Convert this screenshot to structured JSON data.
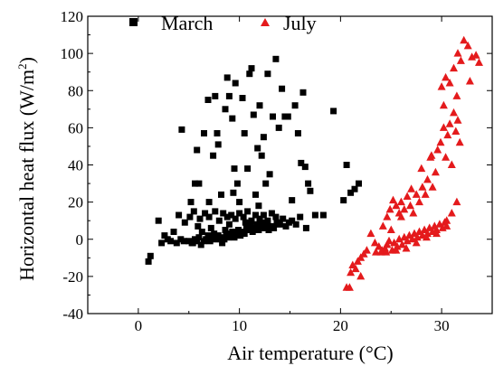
{
  "chart_data": {
    "type": "scatter",
    "xlabel": "Air temperature (°C)",
    "ylabel_main": "Horizontal heat flux (W/m",
    "ylabel_sup": "2",
    "ylabel_close": ")",
    "xlim": [
      -5,
      35
    ],
    "ylim": [
      -40,
      120
    ],
    "xticks": [
      0,
      10,
      20,
      30
    ],
    "yticks": [
      -40,
      -20,
      0,
      20,
      40,
      60,
      80,
      100,
      120
    ],
    "grid": false,
    "legend_placement": "top",
    "series": [
      {
        "name": "March",
        "marker": "square",
        "color": "#000000",
        "points": [
          [
            1.0,
            -12
          ],
          [
            1.2,
            -9
          ],
          [
            2.0,
            10
          ],
          [
            2.3,
            -2
          ],
          [
            2.6,
            2
          ],
          [
            2.9,
            0
          ],
          [
            3.2,
            -1
          ],
          [
            3.5,
            4
          ],
          [
            3.8,
            -2
          ],
          [
            4.2,
            0
          ],
          [
            4.5,
            -1
          ],
          [
            5.0,
            -1
          ],
          [
            5.3,
            -2
          ],
          [
            5.6,
            0
          ],
          [
            5.8,
            -1
          ],
          [
            6.0,
            1
          ],
          [
            6.2,
            -3
          ],
          [
            6.5,
            -1
          ],
          [
            6.7,
            0
          ],
          [
            6.9,
            2
          ],
          [
            7.1,
            -1
          ],
          [
            7.3,
            1
          ],
          [
            7.5,
            3
          ],
          [
            7.7,
            0
          ],
          [
            7.9,
            2
          ],
          [
            8.1,
            1
          ],
          [
            8.3,
            -2
          ],
          [
            8.5,
            0
          ],
          [
            8.7,
            3
          ],
          [
            8.9,
            1
          ],
          [
            9.1,
            2
          ],
          [
            9.3,
            4
          ],
          [
            9.5,
            1
          ],
          [
            9.7,
            3
          ],
          [
            9.9,
            5
          ],
          [
            10.1,
            2
          ],
          [
            10.3,
            4
          ],
          [
            10.5,
            3
          ],
          [
            10.7,
            6
          ],
          [
            10.9,
            5
          ],
          [
            11.1,
            7
          ],
          [
            11.3,
            4
          ],
          [
            11.5,
            6
          ],
          [
            11.7,
            8
          ],
          [
            11.9,
            5
          ],
          [
            12.1,
            7
          ],
          [
            12.3,
            9
          ],
          [
            12.5,
            6
          ],
          [
            12.7,
            8
          ],
          [
            12.9,
            5
          ],
          [
            13.1,
            7
          ],
          [
            13.4,
            6
          ],
          [
            13.7,
            9
          ],
          [
            14.0,
            8
          ],
          [
            14.3,
            11
          ],
          [
            14.6,
            7
          ],
          [
            14.9,
            9
          ],
          [
            15.2,
            10
          ],
          [
            15.6,
            8
          ],
          [
            16.0,
            12
          ],
          [
            4.0,
            13
          ],
          [
            4.6,
            9
          ],
          [
            5.1,
            12
          ],
          [
            5.5,
            15
          ],
          [
            6.1,
            11
          ],
          [
            6.6,
            14
          ],
          [
            7.0,
            12
          ],
          [
            7.6,
            15
          ],
          [
            8.0,
            10
          ],
          [
            8.4,
            14
          ],
          [
            8.8,
            12
          ],
          [
            9.2,
            13
          ],
          [
            9.6,
            11
          ],
          [
            10.0,
            14
          ],
          [
            10.4,
            12
          ],
          [
            10.8,
            15
          ],
          [
            11.2,
            10
          ],
          [
            11.6,
            13
          ],
          [
            12.0,
            11
          ],
          [
            12.4,
            13
          ],
          [
            12.8,
            10
          ],
          [
            13.2,
            14
          ],
          [
            13.6,
            12
          ],
          [
            9.0,
            8
          ],
          [
            8.6,
            5
          ],
          [
            7.2,
            6
          ],
          [
            6.3,
            4
          ],
          [
            5.9,
            7
          ],
          [
            5.4,
            -2
          ],
          [
            10.6,
            9
          ],
          [
            5.2,
            20
          ],
          [
            5.6,
            30
          ],
          [
            5.8,
            48
          ],
          [
            6.0,
            30
          ],
          [
            6.5,
            57
          ],
          [
            6.9,
            75
          ],
          [
            7.0,
            20
          ],
          [
            7.4,
            45
          ],
          [
            7.6,
            77
          ],
          [
            7.8,
            57
          ],
          [
            8.2,
            24
          ],
          [
            8.6,
            70
          ],
          [
            8.8,
            87
          ],
          [
            9.0,
            77
          ],
          [
            9.3,
            65
          ],
          [
            9.5,
            38
          ],
          [
            9.6,
            84
          ],
          [
            9.8,
            30
          ],
          [
            10.0,
            20
          ],
          [
            10.3,
            76
          ],
          [
            10.5,
            57
          ],
          [
            10.8,
            38
          ],
          [
            11.0,
            89
          ],
          [
            11.2,
            92
          ],
          [
            11.4,
            67
          ],
          [
            11.6,
            24
          ],
          [
            11.8,
            49
          ],
          [
            12.0,
            72
          ],
          [
            12.2,
            45
          ],
          [
            12.4,
            55
          ],
          [
            12.6,
            30
          ],
          [
            12.8,
            89
          ],
          [
            13.0,
            35
          ],
          [
            13.3,
            66
          ],
          [
            13.6,
            97
          ],
          [
            13.9,
            60
          ],
          [
            14.2,
            81
          ],
          [
            14.5,
            66
          ],
          [
            14.8,
            66
          ],
          [
            15.2,
            21
          ],
          [
            15.5,
            72
          ],
          [
            15.8,
            57
          ],
          [
            16.1,
            41
          ],
          [
            16.3,
            79
          ],
          [
            16.5,
            39
          ],
          [
            16.8,
            30
          ],
          [
            17.0,
            26
          ],
          [
            17.5,
            13
          ],
          [
            16.6,
            6
          ],
          [
            18.3,
            13
          ],
          [
            19.3,
            69
          ],
          [
            20.3,
            21
          ],
          [
            20.6,
            40
          ],
          [
            21.0,
            25
          ],
          [
            21.4,
            27
          ],
          [
            21.8,
            30
          ],
          [
            4.3,
            59
          ],
          [
            7.9,
            51
          ],
          [
            9.4,
            25
          ],
          [
            11.9,
            18
          ]
        ]
      },
      {
        "name": "July",
        "marker": "triangle",
        "color": "#e41a1c",
        "points": [
          [
            20.6,
            -26
          ],
          [
            20.9,
            -26
          ],
          [
            21.0,
            -18
          ],
          [
            21.2,
            -14
          ],
          [
            21.5,
            -16
          ],
          [
            21.7,
            -12
          ],
          [
            22.0,
            -10
          ],
          [
            22.3,
            -8
          ],
          [
            22.6,
            -6
          ],
          [
            22.0,
            -20
          ],
          [
            23.0,
            3
          ],
          [
            23.4,
            -2
          ],
          [
            23.8,
            -4
          ],
          [
            24.1,
            -6
          ],
          [
            24.4,
            -5
          ],
          [
            24.6,
            -3
          ],
          [
            24.8,
            -1
          ],
          [
            25.1,
            -6
          ],
          [
            25.3,
            -2
          ],
          [
            25.6,
            -4
          ],
          [
            25.8,
            0
          ],
          [
            26.1,
            -3
          ],
          [
            26.3,
            1
          ],
          [
            26.6,
            -1
          ],
          [
            26.8,
            2
          ],
          [
            27.1,
            0
          ],
          [
            27.3,
            3
          ],
          [
            27.6,
            1
          ],
          [
            27.8,
            4
          ],
          [
            28.1,
            2
          ],
          [
            28.3,
            5
          ],
          [
            28.6,
            3
          ],
          [
            28.8,
            6
          ],
          [
            29.1,
            4
          ],
          [
            29.3,
            7
          ],
          [
            29.5,
            5
          ],
          [
            29.8,
            8
          ],
          [
            30.1,
            6
          ],
          [
            30.3,
            9
          ],
          [
            30.5,
            7
          ],
          [
            24.2,
            7
          ],
          [
            24.6,
            12
          ],
          [
            24.9,
            16
          ],
          [
            25.2,
            21
          ],
          [
            25.5,
            18
          ],
          [
            25.8,
            14
          ],
          [
            26.0,
            20
          ],
          [
            26.3,
            16
          ],
          [
            26.6,
            23
          ],
          [
            26.9,
            18
          ],
          [
            27.2,
            14
          ],
          [
            27.5,
            24
          ],
          [
            27.8,
            20
          ],
          [
            28.1,
            28
          ],
          [
            28.4,
            24
          ],
          [
            28.6,
            32
          ],
          [
            28.9,
            44
          ],
          [
            29.1,
            28
          ],
          [
            29.4,
            36
          ],
          [
            29.6,
            48
          ],
          [
            29.9,
            52
          ],
          [
            30.2,
            60
          ],
          [
            30.4,
            44
          ],
          [
            30.6,
            56
          ],
          [
            30.8,
            62
          ],
          [
            31.0,
            40
          ],
          [
            31.2,
            68
          ],
          [
            31.4,
            58
          ],
          [
            31.6,
            64
          ],
          [
            31.8,
            52
          ],
          [
            30.0,
            82
          ],
          [
            30.4,
            87
          ],
          [
            30.8,
            84
          ],
          [
            31.2,
            92
          ],
          [
            31.6,
            100
          ],
          [
            31.9,
            96
          ],
          [
            32.2,
            107
          ],
          [
            32.6,
            104
          ],
          [
            33.0,
            98
          ],
          [
            33.4,
            99
          ],
          [
            33.7,
            95
          ],
          [
            32.8,
            85
          ],
          [
            31.5,
            77
          ],
          [
            30.2,
            72
          ],
          [
            29.0,
            45
          ],
          [
            28.0,
            38
          ],
          [
            27.0,
            27
          ],
          [
            26.0,
            12
          ],
          [
            25.0,
            5
          ],
          [
            24.0,
            -7
          ],
          [
            23.5,
            -7
          ],
          [
            24.5,
            -7
          ],
          [
            25.5,
            -6
          ],
          [
            26.5,
            -5
          ],
          [
            27.5,
            -2
          ],
          [
            28.5,
            1
          ],
          [
            29.5,
            3
          ],
          [
            30.5,
            10
          ],
          [
            31.0,
            14
          ],
          [
            31.5,
            20
          ]
        ]
      }
    ]
  }
}
